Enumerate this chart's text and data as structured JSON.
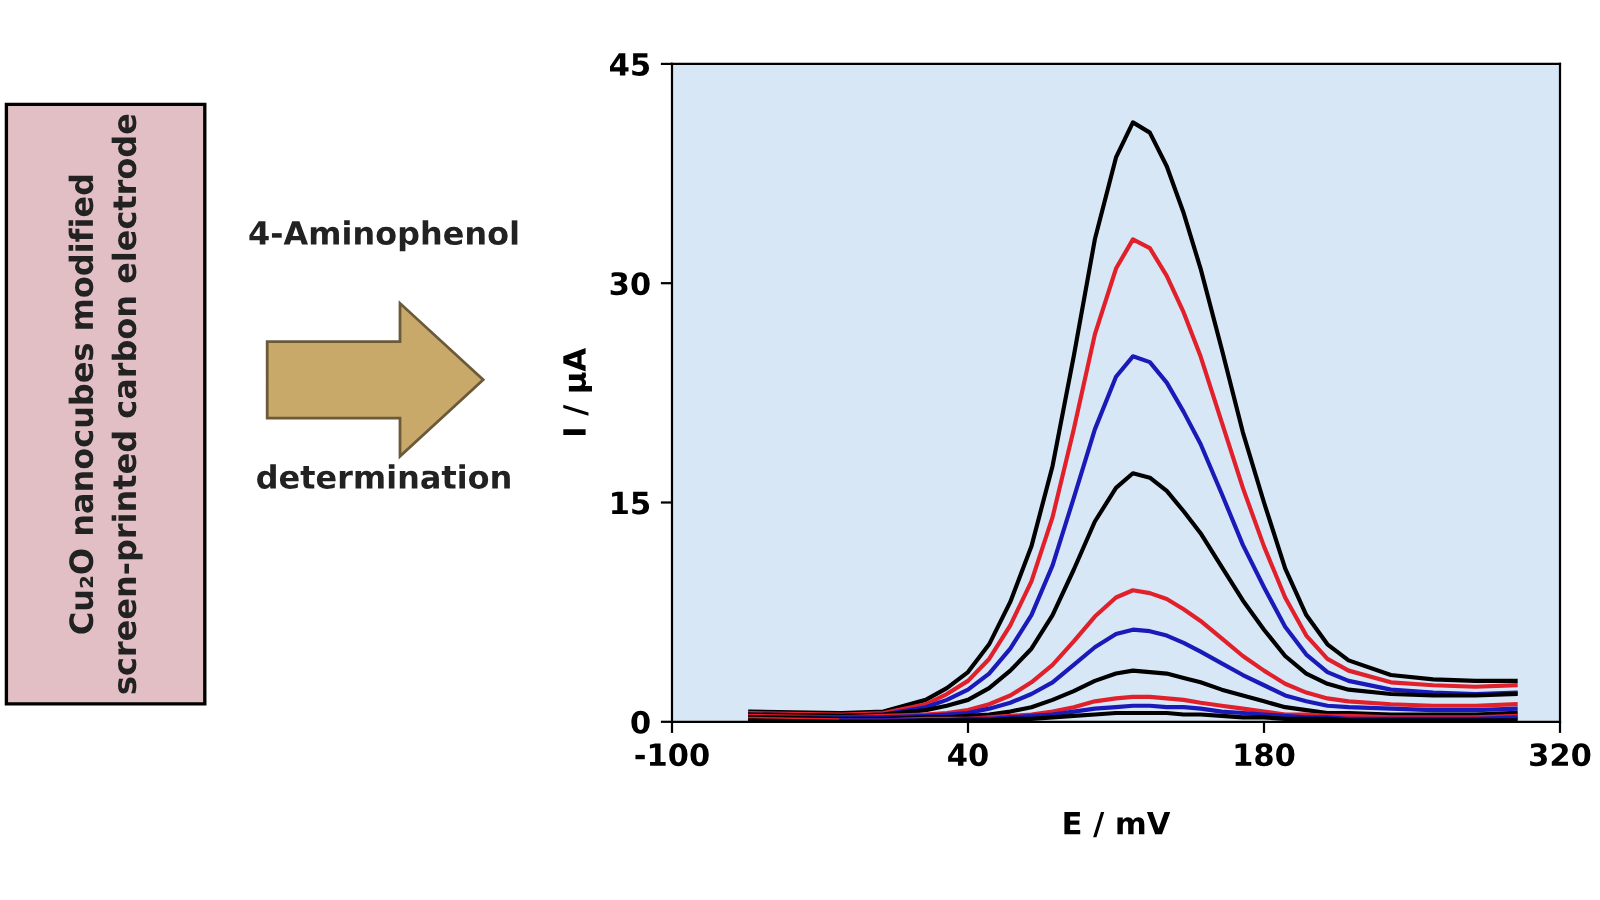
{
  "chart_data": {
    "type": "line",
    "xlabel": "E / mV",
    "ylabel": "I / μA",
    "x": [
      -63,
      -20,
      0,
      20,
      30,
      40,
      50,
      60,
      70,
      80,
      90,
      100,
      110,
      118,
      126,
      134,
      142,
      150,
      160,
      170,
      180,
      190,
      200,
      210,
      220,
      240,
      260,
      280,
      299
    ],
    "series": [
      {
        "color": "#000000",
        "values": [
          0.7,
          0.6,
          0.7,
          1.5,
          2.3,
          3.4,
          5.3,
          8.2,
          12,
          17.5,
          25,
          33,
          38.6,
          41,
          40.3,
          38,
          34.8,
          31,
          25.5,
          19.8,
          15,
          10.5,
          7.3,
          5.3,
          4.2,
          3.2,
          2.9,
          2.8,
          2.8
        ]
      },
      {
        "color": "#e0202a",
        "values": [
          0.6,
          0.5,
          0.6,
          1.2,
          1.9,
          2.8,
          4.3,
          6.6,
          9.6,
          14,
          20,
          26.5,
          31,
          33,
          32.4,
          30.5,
          28,
          25,
          20.5,
          16,
          12,
          8.5,
          5.9,
          4.3,
          3.5,
          2.7,
          2.5,
          2.4,
          2.5
        ]
      },
      {
        "color": "#1a1ab8",
        "values": [
          0.5,
          0.4,
          0.5,
          1.0,
          1.5,
          2.2,
          3.3,
          5,
          7.3,
          10.7,
          15.3,
          20,
          23.6,
          25,
          24.6,
          23.2,
          21.2,
          19,
          15.6,
          12.1,
          9.2,
          6.5,
          4.6,
          3.4,
          2.8,
          2.2,
          2.0,
          1.9,
          2.0
        ]
      },
      {
        "color": "#000000",
        "values": [
          0.5,
          0.4,
          0.5,
          0.8,
          1.1,
          1.5,
          2.3,
          3.5,
          5,
          7.3,
          10.4,
          13.7,
          16,
          17,
          16.7,
          15.8,
          14.4,
          12.9,
          10.6,
          8.3,
          6.3,
          4.5,
          3.3,
          2.6,
          2.2,
          1.9,
          1.8,
          1.8,
          1.9
        ]
      },
      {
        "color": "#e0202a",
        "values": [
          0.4,
          0.3,
          0.4,
          0.5,
          0.6,
          0.8,
          1.2,
          1.8,
          2.7,
          3.9,
          5.5,
          7.2,
          8.5,
          9,
          8.8,
          8.4,
          7.7,
          6.9,
          5.7,
          4.5,
          3.5,
          2.6,
          2.0,
          1.6,
          1.4,
          1.2,
          1.1,
          1.1,
          1.2
        ]
      },
      {
        "color": "#1a1ab8",
        "values": [
          0.3,
          0.3,
          0.3,
          0.4,
          0.5,
          0.6,
          0.9,
          1.3,
          1.9,
          2.7,
          3.9,
          5.1,
          6,
          6.3,
          6.2,
          5.9,
          5.4,
          4.8,
          4,
          3.2,
          2.5,
          1.8,
          1.4,
          1.1,
          1.0,
          0.9,
          0.8,
          0.8,
          0.9
        ]
      },
      {
        "color": "#000000",
        "values": [
          0.3,
          0.2,
          0.2,
          0.3,
          0.3,
          0.4,
          0.5,
          0.7,
          1.0,
          1.5,
          2.1,
          2.8,
          3.3,
          3.5,
          3.4,
          3.3,
          3.0,
          2.7,
          2.2,
          1.8,
          1.4,
          1.0,
          0.8,
          0.6,
          0.6,
          0.5,
          0.5,
          0.5,
          0.6
        ]
      },
      {
        "color": "#e0202a",
        "values": [
          0.2,
          0.1,
          0.1,
          0.2,
          0.2,
          0.2,
          0.3,
          0.4,
          0.5,
          0.7,
          1.0,
          1.4,
          1.6,
          1.7,
          1.7,
          1.6,
          1.5,
          1.3,
          1.1,
          0.9,
          0.7,
          0.5,
          0.5,
          0.4,
          0.4,
          0.3,
          0.3,
          0.3,
          0.4
        ]
      },
      {
        "color": "#1a1ab8",
        "values": [
          null,
          0.1,
          0.1,
          0.1,
          0.1,
          0.2,
          0.2,
          0.3,
          0.4,
          0.5,
          0.7,
          0.9,
          1.0,
          1.1,
          1.1,
          1.0,
          1.0,
          0.9,
          0.7,
          0.6,
          0.5,
          0.4,
          0.3,
          0.3,
          0.2,
          0.2,
          0.2,
          0.2,
          0.3
        ]
      },
      {
        "color": "#000000",
        "values": [
          0.1,
          0.0,
          0.0,
          0.1,
          0.1,
          0.1,
          0.1,
          0.2,
          0.2,
          0.3,
          0.4,
          0.5,
          0.6,
          0.6,
          0.6,
          0.6,
          0.5,
          0.5,
          0.4,
          0.3,
          0.3,
          0.2,
          0.2,
          0.2,
          0.1,
          0.1,
          0.1,
          0.1,
          0.1
        ]
      }
    ],
    "xlim": [
      -100,
      320
    ],
    "xticks": [
      -100,
      40,
      180,
      320
    ],
    "ylim": [
      0,
      45
    ],
    "yticks": [
      0,
      15,
      30,
      45
    ],
    "grid": false,
    "legend": false,
    "annotations": [
      "Cu₂O nanocubes modified\nscreen-printed carbon electrode",
      "4-Aminophenol",
      "determination"
    ]
  }
}
